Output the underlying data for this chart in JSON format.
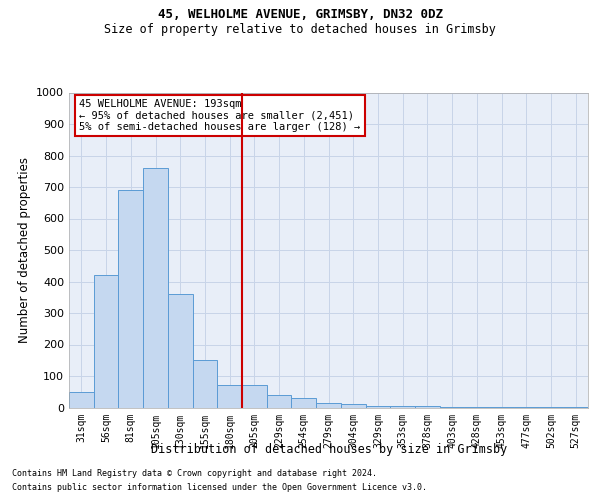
{
  "title1": "45, WELHOLME AVENUE, GRIMSBY, DN32 0DZ",
  "title2": "Size of property relative to detached houses in Grimsby",
  "xlabel": "Distribution of detached houses by size in Grimsby",
  "ylabel": "Number of detached properties",
  "categories": [
    "31sqm",
    "56sqm",
    "81sqm",
    "105sqm",
    "130sqm",
    "155sqm",
    "180sqm",
    "205sqm",
    "229sqm",
    "254sqm",
    "279sqm",
    "304sqm",
    "329sqm",
    "353sqm",
    "378sqm",
    "403sqm",
    "428sqm",
    "453sqm",
    "477sqm",
    "502sqm",
    "527sqm"
  ],
  "bar_heights": [
    50,
    420,
    690,
    760,
    360,
    150,
    70,
    70,
    40,
    30,
    15,
    10,
    5,
    5,
    5,
    3,
    3,
    2,
    2,
    1,
    1
  ],
  "bar_color": "#c5d8f0",
  "bar_edge_color": "#5b9bd5",
  "grid_color": "#c8d4e8",
  "vline_x": 7,
  "vline_color": "#cc0000",
  "annotation_text": "45 WELHOLME AVENUE: 193sqm\n← 95% of detached houses are smaller (2,451)\n5% of semi-detached houses are larger (128) →",
  "annotation_box_color": "white",
  "annotation_box_edge_color": "#cc0000",
  "annotation_fontsize": 7.5,
  "ylim": [
    0,
    1000
  ],
  "yticks": [
    0,
    100,
    200,
    300,
    400,
    500,
    600,
    700,
    800,
    900,
    1000
  ],
  "footer1": "Contains HM Land Registry data © Crown copyright and database right 2024.",
  "footer2": "Contains public sector information licensed under the Open Government Licence v3.0.",
  "bg_color": "#e8eef8",
  "title1_fontsize": 9,
  "title2_fontsize": 8.5
}
